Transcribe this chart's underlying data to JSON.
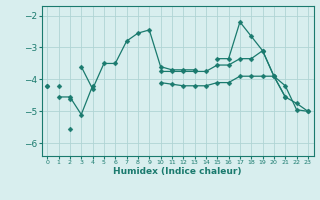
{
  "xlabel": "Humidex (Indice chaleur)",
  "ylabel": "",
  "bg_color": "#d8eeee",
  "grid_color": "#b0d4d4",
  "line_color": "#1a7a6e",
  "x_ticks": [
    0,
    1,
    2,
    3,
    4,
    5,
    6,
    7,
    8,
    9,
    10,
    11,
    12,
    13,
    14,
    15,
    16,
    17,
    18,
    19,
    20,
    21,
    22,
    23
  ],
  "y_ticks": [
    -2,
    -3,
    -4,
    -5,
    -6
  ],
  "ylim": [
    -6.4,
    -1.7
  ],
  "xlim": [
    -0.5,
    23.5
  ],
  "series": [
    [
      null,
      -4.2,
      null,
      -3.6,
      -4.3,
      -3.5,
      -3.5,
      -2.8,
      -2.55,
      -2.45,
      -3.6,
      -3.7,
      -3.7,
      -3.7,
      null,
      -3.35,
      -3.35,
      -2.2,
      -2.65,
      -3.1,
      -3.9,
      -4.55,
      null,
      null
    ],
    [
      null,
      -4.55,
      -4.55,
      -5.1,
      -4.2,
      null,
      null,
      null,
      null,
      null,
      null,
      null,
      null,
      null,
      null,
      null,
      null,
      null,
      null,
      null,
      null,
      null,
      null,
      null
    ],
    [
      -4.2,
      null,
      -4.6,
      null,
      null,
      null,
      null,
      null,
      null,
      null,
      -3.75,
      -3.75,
      -3.75,
      -3.75,
      -3.75,
      -3.55,
      -3.55,
      -3.35,
      -3.35,
      -3.1,
      -3.9,
      -4.55,
      -4.75,
      -5.0
    ],
    [
      -4.2,
      null,
      -5.55,
      null,
      null,
      null,
      null,
      null,
      null,
      null,
      -4.1,
      -4.15,
      -4.2,
      -4.2,
      -4.2,
      -4.1,
      -4.1,
      -3.9,
      -3.9,
      -3.9,
      -3.9,
      -4.2,
      -4.95,
      -5.0
    ]
  ]
}
